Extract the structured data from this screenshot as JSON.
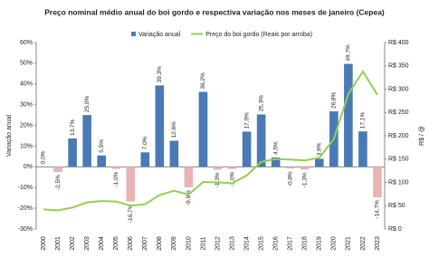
{
  "chart_data": {
    "type": "bar_line",
    "title": "Preço nominal médio anual do boi gordo e respectiva variação nos meses de janeiro (Cepea)",
    "y_label": "Variação anual",
    "y2_label": "R$ / @",
    "categories": [
      "2000",
      "2001",
      "2002",
      "2003",
      "2004",
      "2005",
      "2006",
      "2007",
      "2008",
      "2009",
      "2010",
      "2011",
      "2012",
      "2013",
      "2014",
      "2015",
      "2016",
      "2017",
      "2018",
      "2019",
      "2020",
      "2021",
      "2022",
      "2023"
    ],
    "series": [
      {
        "name": "Variação anual",
        "type": "bar",
        "color": "#4a7ab5",
        "negative_color": "#e8b4b4",
        "values": [
          0,
          -2.5,
          13.7,
          25.0,
          5.5,
          -1.0,
          -16.7,
          7.0,
          39.3,
          12.6,
          -9.9,
          36.2,
          -1.3,
          -1.0,
          17.0,
          25.3,
          4.5,
          -0.8,
          -1.3,
          3.9,
          26.8,
          49.7,
          17.1,
          -14.7
        ],
        "value_labels": [
          "0,0%",
          "-2,5%",
          "13,7%",
          "25,0%",
          "5,5%",
          "-1,0%",
          "-16,7%",
          "7,0%",
          "39,3%",
          "12,6%",
          "-9,9%",
          "36,2%",
          "-1,3%",
          "-1,0%",
          "17,0%",
          "25,3%",
          "4,5%",
          "-0,8%",
          "-1,3%",
          "3,9%",
          "26,8%",
          "49,7%",
          "17,1%",
          "-14,7%"
        ]
      },
      {
        "name": "Preço do boi gordo (Reais por arroba)",
        "type": "line",
        "axis": "y2",
        "color": "#92d050",
        "values": [
          42,
          40,
          46,
          57,
          60,
          59,
          50,
          53,
          73,
          82,
          74,
          101,
          100,
          98,
          115,
          144,
          150,
          149,
          147,
          153,
          193,
          290,
          338,
          288
        ]
      }
    ],
    "ylim": [
      -30,
      60
    ],
    "yticks": [
      {
        "value": -30,
        "label": "-30%"
      },
      {
        "value": -20,
        "label": "-20%"
      },
      {
        "value": -10,
        "label": "-10%"
      },
      {
        "value": 0,
        "label": "0%"
      },
      {
        "value": 10,
        "label": "10%"
      },
      {
        "value": 20,
        "label": "20%"
      },
      {
        "value": 30,
        "label": "30%"
      },
      {
        "value": 40,
        "label": "40%"
      },
      {
        "value": 50,
        "label": "50%"
      },
      {
        "value": 60,
        "label": "60%"
      }
    ],
    "y2lim": [
      0,
      400
    ],
    "y2ticks": [
      {
        "value": 0,
        "label": "R$ 0"
      },
      {
        "value": 50,
        "label": "R$ 50"
      },
      {
        "value": 100,
        "label": "R$ 100"
      },
      {
        "value": 150,
        "label": "R$ 150"
      },
      {
        "value": 200,
        "label": "R$ 200"
      },
      {
        "value": 250,
        "label": "R$ 250"
      },
      {
        "value": 300,
        "label": "R$ 300"
      },
      {
        "value": 350,
        "label": "R$ 350"
      },
      {
        "value": 400,
        "label": "R$ 400"
      }
    ],
    "grid": false
  }
}
